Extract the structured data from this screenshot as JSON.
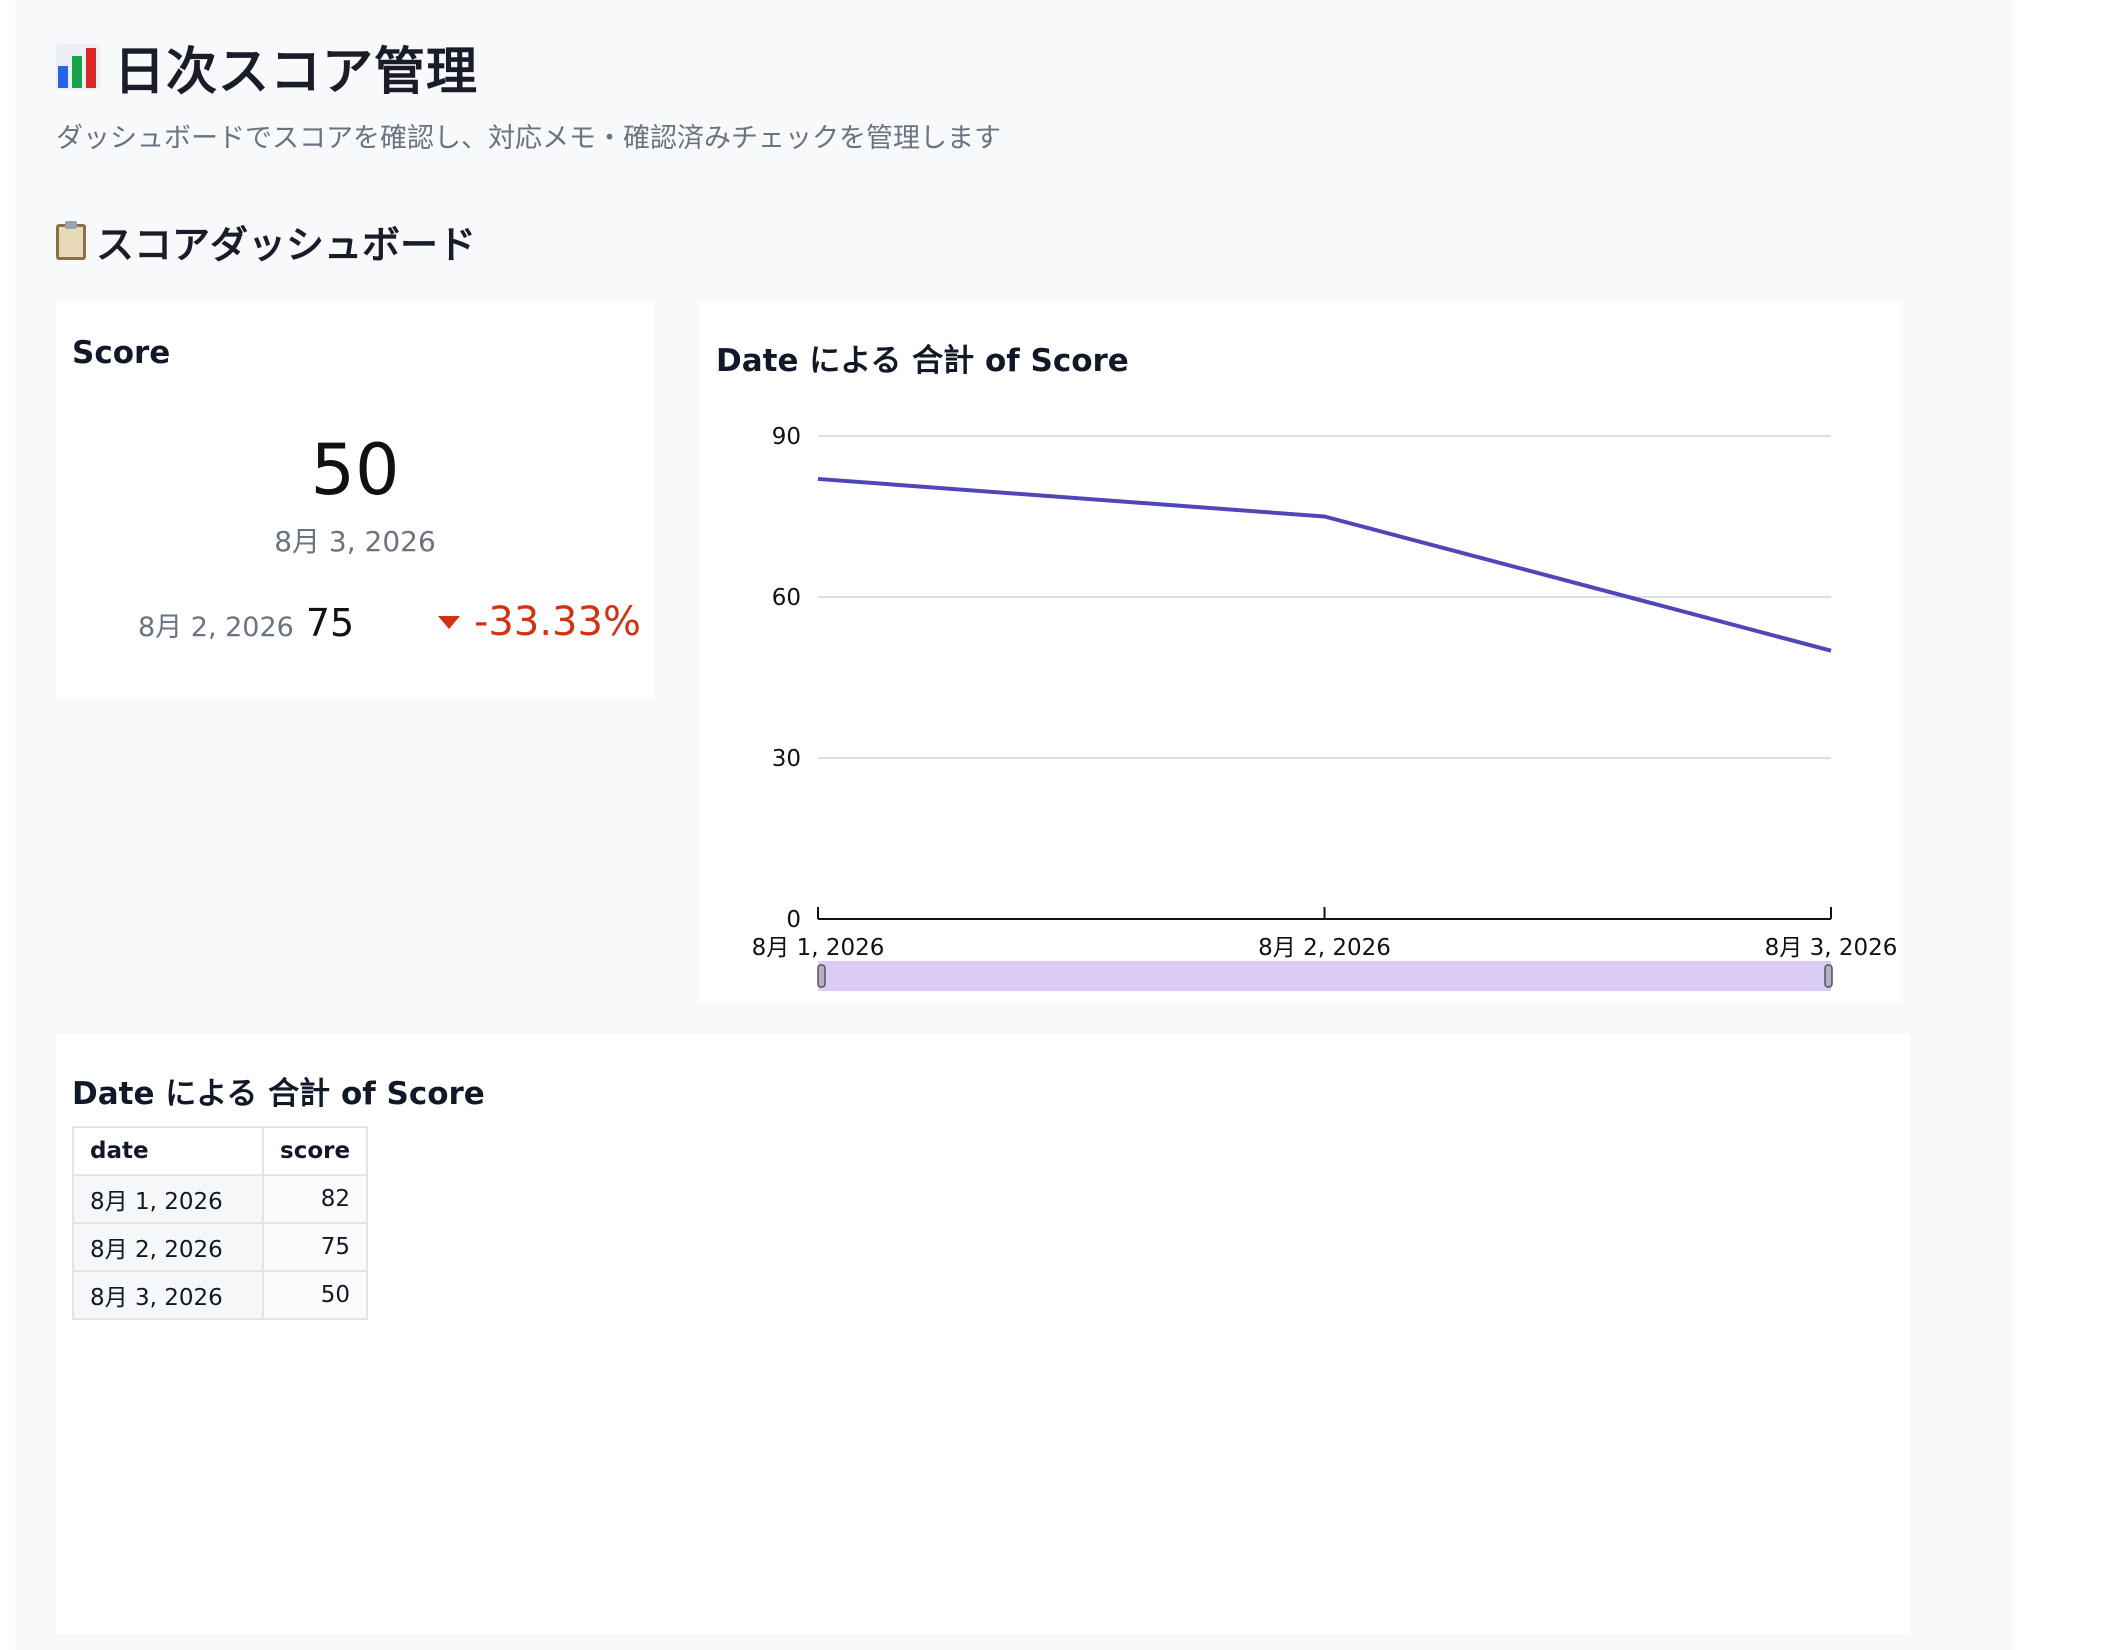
{
  "header": {
    "title": "日次スコア管理",
    "subtitle": "ダッシュボードでスコアを確認し、対応メモ・確認済みチェックを管理します"
  },
  "section": {
    "title": "スコアダッシュボード"
  },
  "kpi": {
    "title": "Score",
    "value": "50",
    "date": "8月 3, 2026",
    "compare_date": "8月 2, 2026",
    "compare_value": "75",
    "delta": "-33.33%",
    "delta_color": "#d13212"
  },
  "line_chart_card": {
    "title": "Date による 合計 of Score"
  },
  "table_card": {
    "title": "Date による 合計 of Score",
    "columns": [
      "date",
      "score"
    ],
    "rows": [
      {
        "date": "8月 1, 2026",
        "score": "82"
      },
      {
        "date": "8月 2, 2026",
        "score": "75"
      },
      {
        "date": "8月 3, 2026",
        "score": "50"
      }
    ]
  },
  "colors": {
    "accent": "#4f46b8",
    "range_selector": "#dacbf7"
  },
  "chart_data": {
    "type": "line",
    "title": "Date による 合計 of Score",
    "categories": [
      "8月 1, 2026",
      "8月 2, 2026",
      "8月 3, 2026"
    ],
    "series": [
      {
        "values": [
          82,
          75,
          50
        ]
      }
    ],
    "ylim": [
      0,
      90
    ],
    "yticks": [
      0,
      30,
      60,
      90
    ],
    "grid": true,
    "range_selector": true
  }
}
